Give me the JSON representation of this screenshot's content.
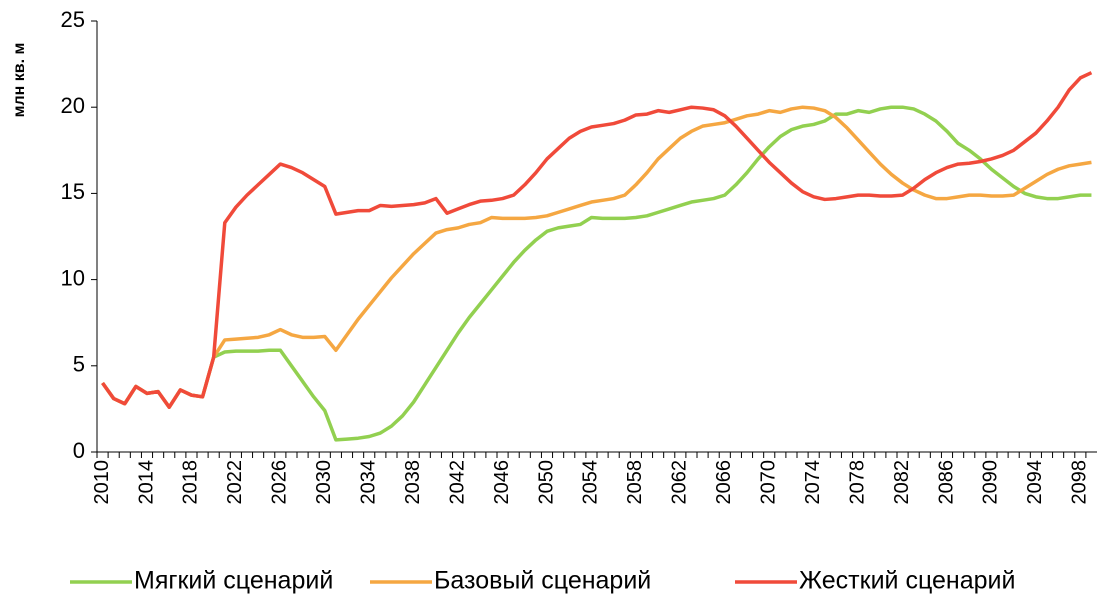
{
  "chart_data": {
    "type": "line",
    "y_label": "млн кв. м",
    "categories": [
      "2010",
      null,
      null,
      null,
      "2014",
      null,
      null,
      null,
      "2018",
      null,
      null,
      null,
      "2022",
      null,
      null,
      null,
      "2026",
      null,
      null,
      null,
      "2030",
      null,
      null,
      null,
      "2034",
      null,
      null,
      null,
      "2038",
      null,
      null,
      null,
      "2042",
      null,
      null,
      null,
      "2046",
      null,
      null,
      null,
      "2050",
      null,
      null,
      null,
      "2054",
      null,
      null,
      null,
      "2058",
      null,
      null,
      null,
      "2062",
      null,
      null,
      null,
      "2066",
      null,
      null,
      null,
      "2070",
      null,
      null,
      null,
      "2074",
      null,
      null,
      null,
      "2078",
      null,
      null,
      null,
      "2082",
      null,
      null,
      null,
      "2086",
      null,
      null,
      null,
      "2090",
      null,
      null,
      null,
      "2094",
      null,
      null,
      null,
      "2098",
      null
    ],
    "series": [
      {
        "name": "Мягкий сценарий",
        "color": "#92d050",
        "values": [
          4.0,
          3.1,
          2.8,
          3.8,
          3.4,
          3.5,
          2.6,
          3.6,
          3.3,
          3.2,
          5.5,
          5.8,
          5.85,
          5.85,
          5.85,
          5.9,
          5.9,
          5.0,
          4.1,
          3.2,
          2.4,
          0.7,
          0.75,
          0.8,
          0.9,
          1.1,
          1.5,
          2.1,
          2.9,
          3.9,
          4.9,
          5.9,
          6.9,
          7.8,
          8.6,
          9.4,
          10.2,
          11.0,
          11.7,
          12.3,
          12.8,
          13.0,
          13.1,
          13.2,
          13.6,
          13.55,
          13.55,
          13.55,
          13.6,
          13.7,
          13.9,
          14.1,
          14.3,
          14.5,
          14.6,
          14.7,
          14.9,
          15.5,
          16.2,
          17.0,
          17.7,
          18.3,
          18.7,
          18.9,
          19.0,
          19.2,
          19.6,
          19.6,
          19.8,
          19.7,
          19.9,
          20.0,
          20.0,
          19.9,
          19.6,
          19.2,
          18.6,
          17.9,
          17.5,
          17.0,
          16.4,
          15.9,
          15.4,
          15.0,
          14.8,
          14.7,
          14.7,
          14.8,
          14.9,
          14.9
        ]
      },
      {
        "name": "Базовый сценарий",
        "color": "#f5a742",
        "values": [
          4.0,
          3.1,
          2.8,
          3.8,
          3.4,
          3.5,
          2.6,
          3.6,
          3.3,
          3.2,
          5.5,
          6.5,
          6.55,
          6.6,
          6.65,
          6.8,
          7.1,
          6.8,
          6.65,
          6.65,
          6.7,
          5.9,
          6.8,
          7.7,
          8.5,
          9.3,
          10.1,
          10.8,
          11.5,
          12.1,
          12.7,
          12.9,
          13.0,
          13.2,
          13.3,
          13.6,
          13.55,
          13.55,
          13.55,
          13.6,
          13.7,
          13.9,
          14.1,
          14.3,
          14.5,
          14.6,
          14.7,
          14.9,
          15.5,
          16.2,
          17.0,
          17.6,
          18.2,
          18.6,
          18.9,
          19.0,
          19.1,
          19.3,
          19.5,
          19.6,
          19.8,
          19.7,
          19.9,
          20.0,
          19.95,
          19.8,
          19.4,
          18.8,
          18.1,
          17.4,
          16.7,
          16.1,
          15.6,
          15.2,
          14.9,
          14.7,
          14.7,
          14.8,
          14.9,
          14.9,
          14.85,
          14.85,
          14.9,
          15.3,
          15.7,
          16.1,
          16.4,
          16.6,
          16.7,
          16.8
        ]
      },
      {
        "name": "Жесткий сценарий",
        "color": "#f04a3a",
        "values": [
          4.0,
          3.1,
          2.8,
          3.8,
          3.4,
          3.5,
          2.6,
          3.6,
          3.3,
          3.2,
          5.5,
          13.3,
          14.2,
          14.9,
          15.5,
          16.1,
          16.7,
          16.5,
          16.2,
          15.8,
          15.4,
          13.8,
          13.9,
          14.0,
          14.0,
          14.3,
          14.25,
          14.3,
          14.35,
          14.45,
          14.7,
          13.85,
          14.1,
          14.35,
          14.55,
          14.6,
          14.7,
          14.9,
          15.5,
          16.2,
          17.0,
          17.6,
          18.2,
          18.6,
          18.85,
          18.95,
          19.05,
          19.25,
          19.55,
          19.6,
          19.8,
          19.7,
          19.85,
          20.0,
          19.95,
          19.85,
          19.5,
          18.9,
          18.2,
          17.5,
          16.8,
          16.2,
          15.6,
          15.1,
          14.8,
          14.65,
          14.7,
          14.8,
          14.9,
          14.9,
          14.85,
          14.85,
          14.9,
          15.3,
          15.8,
          16.2,
          16.5,
          16.7,
          16.75,
          16.85,
          17.0,
          17.2,
          17.5,
          18.0,
          18.5,
          19.2,
          20.0,
          21.0,
          21.7,
          22.0
        ]
      }
    ],
    "ylim": [
      0,
      25
    ],
    "yticks": [
      0,
      5,
      10,
      15,
      20,
      25
    ],
    "grid": false
  }
}
